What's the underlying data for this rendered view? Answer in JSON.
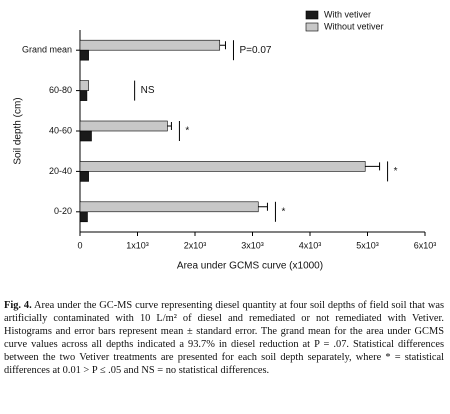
{
  "chart_data": {
    "type": "hbar",
    "categories": [
      "Grand mean",
      "60-80",
      "40-60",
      "20-40",
      "0-20"
    ],
    "series": [
      {
        "name": "Without vetiver",
        "color": "#c8c8c8",
        "values": [
          2430,
          150,
          1520,
          4960,
          3100
        ],
        "errors": [
          100,
          0,
          70,
          250,
          160
        ]
      },
      {
        "name": "With vetiver",
        "color": "#1a1a1a",
        "values": [
          150,
          120,
          200,
          150,
          130
        ]
      }
    ],
    "legend_order": [
      "With vetiver",
      "Without vetiver"
    ],
    "legend": "upper right",
    "annotations": [
      "P=0.07",
      "NS",
      "*",
      "*",
      "*"
    ],
    "xlim": [
      0,
      6000
    ],
    "xticks": [
      0,
      {
        "value": 1000,
        "label": "1x10³"
      },
      {
        "value": 2000,
        "label": "2x10³"
      },
      {
        "value": 3000,
        "label": "3x10³"
      },
      {
        "value": 4000,
        "label": "4x10³"
      },
      {
        "value": 5000,
        "label": "5x10³"
      },
      {
        "value": 6000,
        "label": "6x10³"
      }
    ],
    "xlabel": "Area under GCMS curve (x1000)",
    "ylabel": "Soil depth (cm)"
  },
  "caption": {
    "label": "Fig. 4.",
    "text": "Area under the GC-MS curve representing diesel quantity at four soil depths of field soil that was artificially contaminated with 10 L/m² of diesel and remediated or not remediated with Vetiver. Histograms and error bars represent mean ± standard error. The grand mean for the area under GCMS curve values across all depths indicated a 93.7% in diesel reduction at P = .07. Statistical differences between the two Vetiver treatments are presented for each soil depth separately, where * = statistical differences at 0.01 > P ≤ .05 and NS = no statistical differences."
  }
}
